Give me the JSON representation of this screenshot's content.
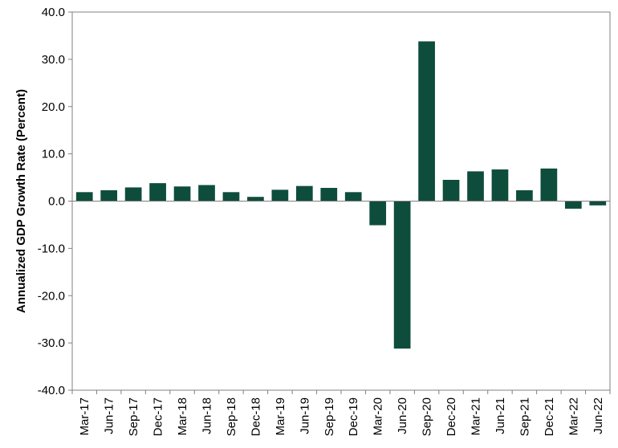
{
  "chart_data": {
    "type": "bar",
    "title": "",
    "xlabel": "",
    "ylabel": "Annualized GDP Growth Rate (Percent)",
    "ylim": [
      -40,
      40
    ],
    "yticks": [
      40,
      30,
      20,
      10,
      0,
      -10,
      -20,
      -30,
      -40
    ],
    "ytick_labels": [
      "40.0",
      "30.0",
      "20.0",
      "10.0",
      "0.0",
      "-10.0",
      "-20.0",
      "-30.0",
      "-40.0"
    ],
    "categories": [
      "Mar-17",
      "Jun-17",
      "Sep-17",
      "Dec-17",
      "Mar-18",
      "Jun-18",
      "Sep-18",
      "Dec-18",
      "Mar-19",
      "Jun-19",
      "Sep-19",
      "Dec-19",
      "Mar-20",
      "Jun-20",
      "Sep-20",
      "Dec-20",
      "Mar-21",
      "Jun-21",
      "Sep-21",
      "Dec-21",
      "Mar-22",
      "Jun-22"
    ],
    "values": [
      1.9,
      2.3,
      2.9,
      3.8,
      3.1,
      3.4,
      1.9,
      0.9,
      2.4,
      3.2,
      2.8,
      1.9,
      -5.1,
      -31.2,
      33.8,
      4.5,
      6.3,
      6.7,
      2.3,
      6.9,
      -1.6,
      -0.9
    ],
    "bar_color": "#0e4d3c",
    "grid": false,
    "legend": "none"
  }
}
